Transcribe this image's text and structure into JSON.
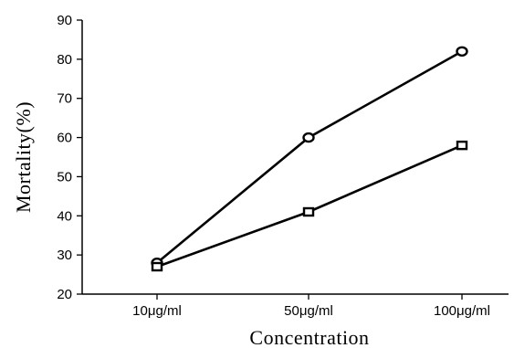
{
  "chart_data": {
    "type": "line",
    "xlabel": "Concentration",
    "ylabel": "Mortality(%)",
    "categories": [
      "10μg/ml",
      "50μg/ml",
      "100μg/ml"
    ],
    "ylim": [
      20,
      90
    ],
    "yticks": [
      20,
      30,
      40,
      50,
      60,
      70,
      80,
      90
    ],
    "grid": false,
    "series": [
      {
        "marker": "circle",
        "values": [
          28,
          60,
          82
        ]
      },
      {
        "marker": "square",
        "values": [
          27,
          41,
          58
        ]
      }
    ]
  }
}
